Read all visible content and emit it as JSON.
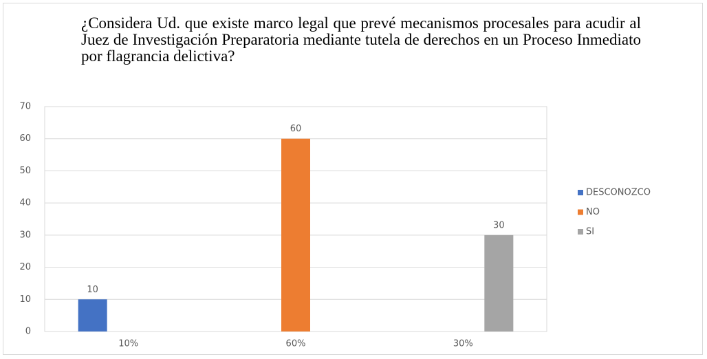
{
  "chart_data": {
    "type": "bar",
    "title": "¿Considera Ud. que existe marco legal que prevé mecanismos procesales para acudir al Juez de Investigación Preparatoria mediante tutela de derechos en un Proceso Inmediato por flagrancia delictiva?",
    "categories": [
      "10%",
      "60%",
      "30%"
    ],
    "series": [
      {
        "name": "DESCONOZCO",
        "color": "#4472c4",
        "values": [
          10,
          null,
          null
        ]
      },
      {
        "name": "NO",
        "color": "#ed7d31",
        "values": [
          null,
          60,
          null
        ]
      },
      {
        "name": "SI",
        "color": "#a5a5a5",
        "values": [
          null,
          null,
          30
        ]
      }
    ],
    "ylim": [
      0,
      70
    ],
    "yticks": [
      0,
      10,
      20,
      30,
      40,
      50,
      60,
      70
    ],
    "grid": true,
    "legend": "right"
  }
}
